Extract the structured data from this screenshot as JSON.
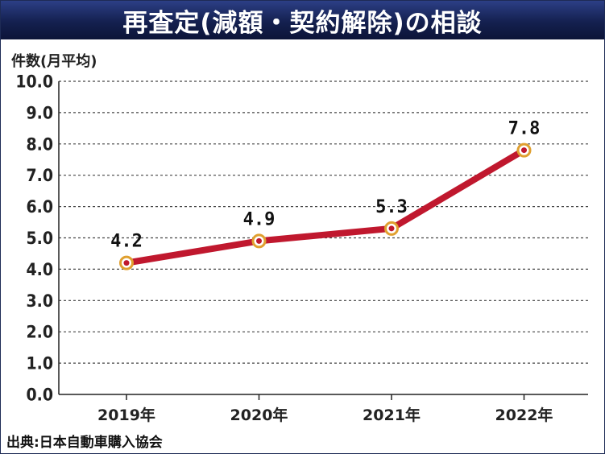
{
  "title": "再査定(減額・契約解除)の相談",
  "source": "出典:日本自動車購入協会",
  "colors": {
    "title_bg": "#14204f",
    "line": "#c0182e",
    "marker_ring": "#e0a030",
    "marker_center": "#c0182e"
  },
  "chart_data": {
    "type": "line",
    "title": "再査定(減額・契約解除)の相談",
    "ylabel": "件数(月平均)",
    "xlabel": "",
    "categories": [
      "2019年",
      "2020年",
      "2021年",
      "2022年"
    ],
    "y_ticks": [
      "0.0",
      "1.0",
      "2.0",
      "3.0",
      "4.0",
      "5.0",
      "6.0",
      "7.0",
      "8.0",
      "9.0",
      "10.0"
    ],
    "ylim": [
      0,
      10
    ],
    "grid": true,
    "series": [
      {
        "values": [
          4.2,
          4.9,
          5.3,
          7.8
        ],
        "labels": [
          "4.2",
          "4.9",
          "5.3",
          "7.8"
        ]
      }
    ]
  }
}
